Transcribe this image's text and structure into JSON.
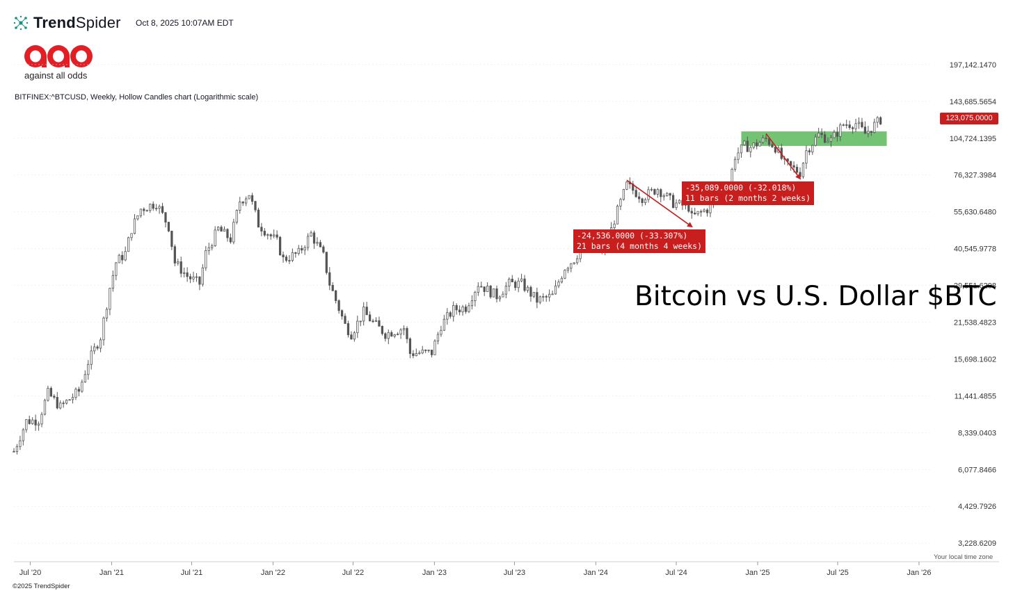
{
  "header": {
    "brand_bold": "Trend",
    "brand_light": "Spider",
    "timestamp": "Oct 8, 2025 10:07AM EDT",
    "logo_icon": "aao-logo",
    "logo_tagline": "against all odds",
    "symbol_description": "BITFINEX:^BTCUSD, Weekly, Hollow Candles chart (Logarithmic scale)"
  },
  "chart_title": "Bitcoin vs U.S. Dollar $BTC",
  "footer": {
    "timezone": "Your local time zone",
    "copyright": "©2025 TrendSpider"
  },
  "colors": {
    "candle": "#555555",
    "annotation": "#c81e1e",
    "zone": "#5cb85c",
    "grid": "#e6e6e6"
  },
  "chart_data": {
    "type": "candlestick",
    "scale": "log",
    "interval": "weekly",
    "ylim": [
      2800,
      240000
    ],
    "current_price": 123075,
    "current_price_label": "123,075.0000",
    "y_ticks": [
      {
        "value": 197142.147,
        "label": "197,142.1470"
      },
      {
        "value": 143685.5654,
        "label": "143,685.5654"
      },
      {
        "value": 104724.1395,
        "label": "104,724.1395"
      },
      {
        "value": 76327.3984,
        "label": "76,327.3984"
      },
      {
        "value": 55630.648,
        "label": "55,630.6480"
      },
      {
        "value": 40545.9778,
        "label": "40,545.9778"
      },
      {
        "value": 29551.6298,
        "label": "29,551.6298"
      },
      {
        "value": 21538.4823,
        "label": "21,538.4823"
      },
      {
        "value": 15698.1602,
        "label": "15,698.1602"
      },
      {
        "value": 11441.4855,
        "label": "11,441.4855"
      },
      {
        "value": 8339.0403,
        "label": "8,339.0403"
      },
      {
        "value": 6077.8466,
        "label": "6,077.8466"
      },
      {
        "value": 4429.7926,
        "label": "4,429.7926"
      },
      {
        "value": 3228.6209,
        "label": "3,228.6209"
      }
    ],
    "x_ticks": [
      "Jul '20",
      "Jan '21",
      "Jul '21",
      "Jan '22",
      "Jul '22",
      "Jan '23",
      "Jul '23",
      "Jan '24",
      "Jul '24",
      "Jan '25",
      "Jul '25",
      "Jan '26"
    ],
    "x_tick_dates": [
      "2020-07-01",
      "2021-01-01",
      "2021-07-01",
      "2022-01-01",
      "2022-07-01",
      "2023-01-01",
      "2023-07-01",
      "2024-01-01",
      "2024-07-01",
      "2025-01-01",
      "2025-07-01",
      "2026-01-01"
    ],
    "x_start": "2020-05-25",
    "x_end": "2026-01-31",
    "anchor_closes": [
      [
        "2020-05-25",
        7100
      ],
      [
        "2020-06-22",
        9200
      ],
      [
        "2020-07-20",
        9300
      ],
      [
        "2020-08-10",
        11700
      ],
      [
        "2020-09-07",
        10400
      ],
      [
        "2020-10-19",
        11900
      ],
      [
        "2020-11-09",
        15300
      ],
      [
        "2020-12-07",
        19000
      ],
      [
        "2020-12-28",
        29000
      ],
      [
        "2021-01-11",
        36000
      ],
      [
        "2021-02-01",
        39000
      ],
      [
        "2021-02-15",
        48000
      ],
      [
        "2021-03-08",
        57000
      ],
      [
        "2021-04-12",
        60000
      ],
      [
        "2021-05-10",
        49000
      ],
      [
        "2021-05-24",
        36000
      ],
      [
        "2021-06-21",
        32000
      ],
      [
        "2021-07-19",
        30000
      ],
      [
        "2021-08-02",
        39000
      ],
      [
        "2021-08-30",
        48000
      ],
      [
        "2021-09-27",
        44000
      ],
      [
        "2021-10-18",
        61000
      ],
      [
        "2021-11-08",
        65000
      ],
      [
        "2021-11-29",
        50000
      ],
      [
        "2022-01-10",
        43000
      ],
      [
        "2022-01-24",
        37000
      ],
      [
        "2022-02-28",
        39000
      ],
      [
        "2022-03-28",
        46000
      ],
      [
        "2022-04-25",
        38000
      ],
      [
        "2022-05-09",
        30000
      ],
      [
        "2022-06-13",
        21000
      ],
      [
        "2022-06-27",
        19500
      ],
      [
        "2022-07-25",
        23500
      ],
      [
        "2022-08-15",
        21500
      ],
      [
        "2022-09-12",
        19500
      ],
      [
        "2022-10-24",
        20500
      ],
      [
        "2022-11-07",
        16500
      ],
      [
        "2022-12-26",
        16600
      ],
      [
        "2023-01-16",
        21000
      ],
      [
        "2023-02-13",
        24000
      ],
      [
        "2023-03-13",
        24500
      ],
      [
        "2023-04-10",
        30000
      ],
      [
        "2023-05-22",
        27000
      ],
      [
        "2023-06-19",
        30000
      ],
      [
        "2023-07-17",
        30000
      ],
      [
        "2023-08-21",
        26000
      ],
      [
        "2023-09-25",
        27000
      ],
      [
        "2023-10-23",
        34500
      ],
      [
        "2023-11-13",
        37000
      ],
      [
        "2023-12-04",
        42000
      ],
      [
        "2024-01-22",
        40000
      ],
      [
        "2024-02-12",
        52000
      ],
      [
        "2024-03-11",
        70000
      ],
      [
        "2024-04-15",
        63000
      ],
      [
        "2024-05-20",
        68000
      ],
      [
        "2024-06-24",
        60000
      ],
      [
        "2024-07-29",
        58000
      ],
      [
        "2024-08-05",
        53000
      ],
      [
        "2024-09-09",
        57000
      ],
      [
        "2024-09-30",
        63000
      ],
      [
        "2024-10-28",
        70000
      ],
      [
        "2024-11-11",
        90000
      ],
      [
        "2024-12-02",
        98000
      ],
      [
        "2024-12-16",
        97000
      ],
      [
        "2025-01-20",
        104000
      ],
      [
        "2025-02-10",
        97000
      ],
      [
        "2025-03-03",
        84000
      ],
      [
        "2025-04-07",
        78000
      ],
      [
        "2025-04-21",
        94000
      ],
      [
        "2025-05-19",
        108000
      ],
      [
        "2025-06-16",
        103000
      ],
      [
        "2025-07-14",
        118000
      ],
      [
        "2025-08-11",
        119000
      ],
      [
        "2025-09-01",
        109000
      ],
      [
        "2025-10-06",
        123000
      ]
    ],
    "green_zone": {
      "from": "2024-11-25",
      "to": "2025-10-20",
      "low": 98000,
      "high": 111000
    },
    "drawdowns": [
      {
        "from_date": "2024-03-11",
        "from_price": 73000,
        "to_date": "2024-08-05",
        "to_price": 49000,
        "label": "-24,536.0000 (-33.307%)",
        "sublabel": "21 bars (4 months 4 weeks)"
      },
      {
        "from_date": "2025-01-20",
        "from_price": 109000,
        "to_date": "2025-04-07",
        "to_price": 74000,
        "label": "-35,089.0000 (-32.018%)",
        "sublabel": "11 bars (2 months 2 weeks)"
      }
    ]
  }
}
